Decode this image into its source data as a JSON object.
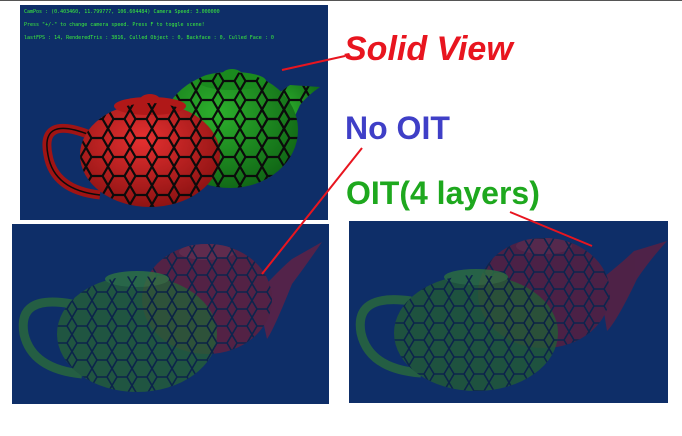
{
  "hud": {
    "line1": "CamPos : (0.403460, 11.799777, 106.604484) Camera Speed: 3.000000",
    "line2": "Press \"+/-\" to change camera speed. Press F to toggle scene!",
    "line3": "lastFPS : 14, RenderedTris : 3816, Culled Object : 0, Backface : 0, Culled Face : 0"
  },
  "labels": {
    "solid_view": "Solid View",
    "no_oit": "No OIT",
    "oit": "OIT(4 layers)"
  },
  "colors": {
    "background_blue": "#0e2e68",
    "label_red": "#e8151f",
    "label_blue": "#3f3fc7",
    "label_green": "#1ea81e",
    "hud_green": "#3cf03c"
  }
}
